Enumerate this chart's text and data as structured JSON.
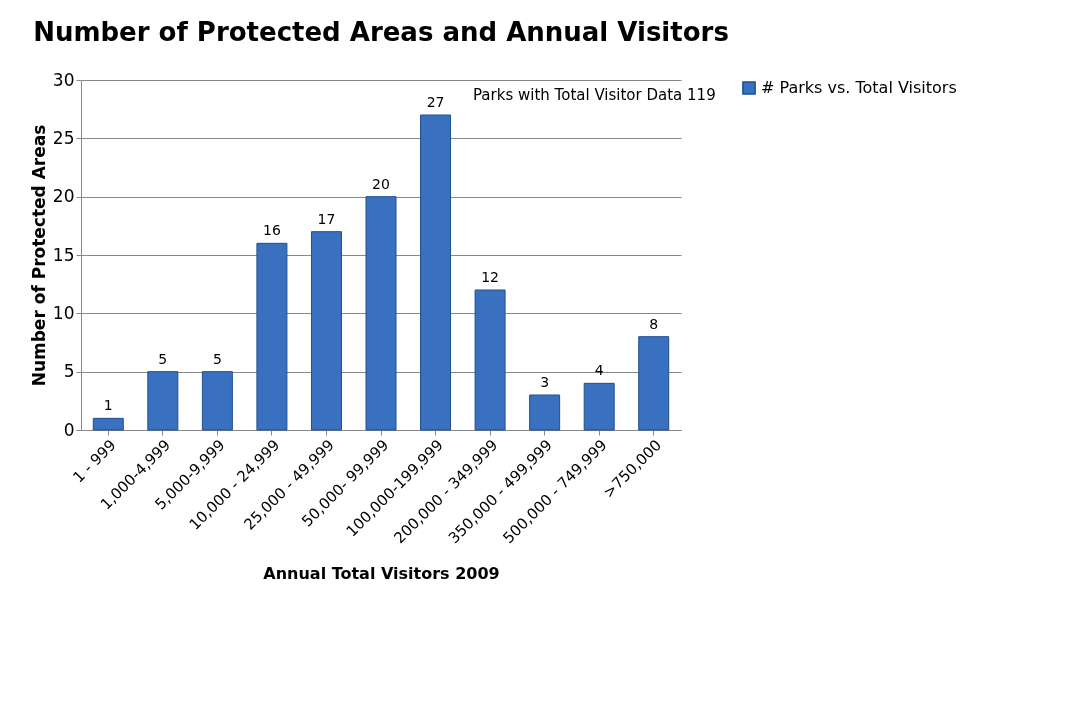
{
  "chart_data": {
    "type": "bar",
    "title": "Number of Protected Areas and Annual Visitors",
    "xlabel": "Annual Total Visitors 2009",
    "ylabel": "Number of Protected Areas",
    "categories": [
      "1 - 999",
      "1,000-4,999",
      "5,000-9,999",
      "10,000 - 24,999",
      "25,000 - 49,999",
      "50,000- 99,999",
      "100,000-199,999",
      "200,000 - 349,999",
      "350,000 - 499,999",
      "500,000 - 749,999",
      ">750,000"
    ],
    "series": [
      {
        "name": "# Parks vs. Total Visitors",
        "color": "#3a70c0",
        "values": [
          1,
          5,
          5,
          16,
          17,
          20,
          27,
          12,
          3,
          4,
          8
        ]
      }
    ],
    "ylim": [
      0,
      30
    ],
    "yticks": [
      0,
      5,
      10,
      15,
      20,
      25,
      30
    ],
    "grid": "y",
    "legend": "right",
    "data_labels": true,
    "annotations": [
      "Parks with Total Visitor Data  119"
    ]
  }
}
